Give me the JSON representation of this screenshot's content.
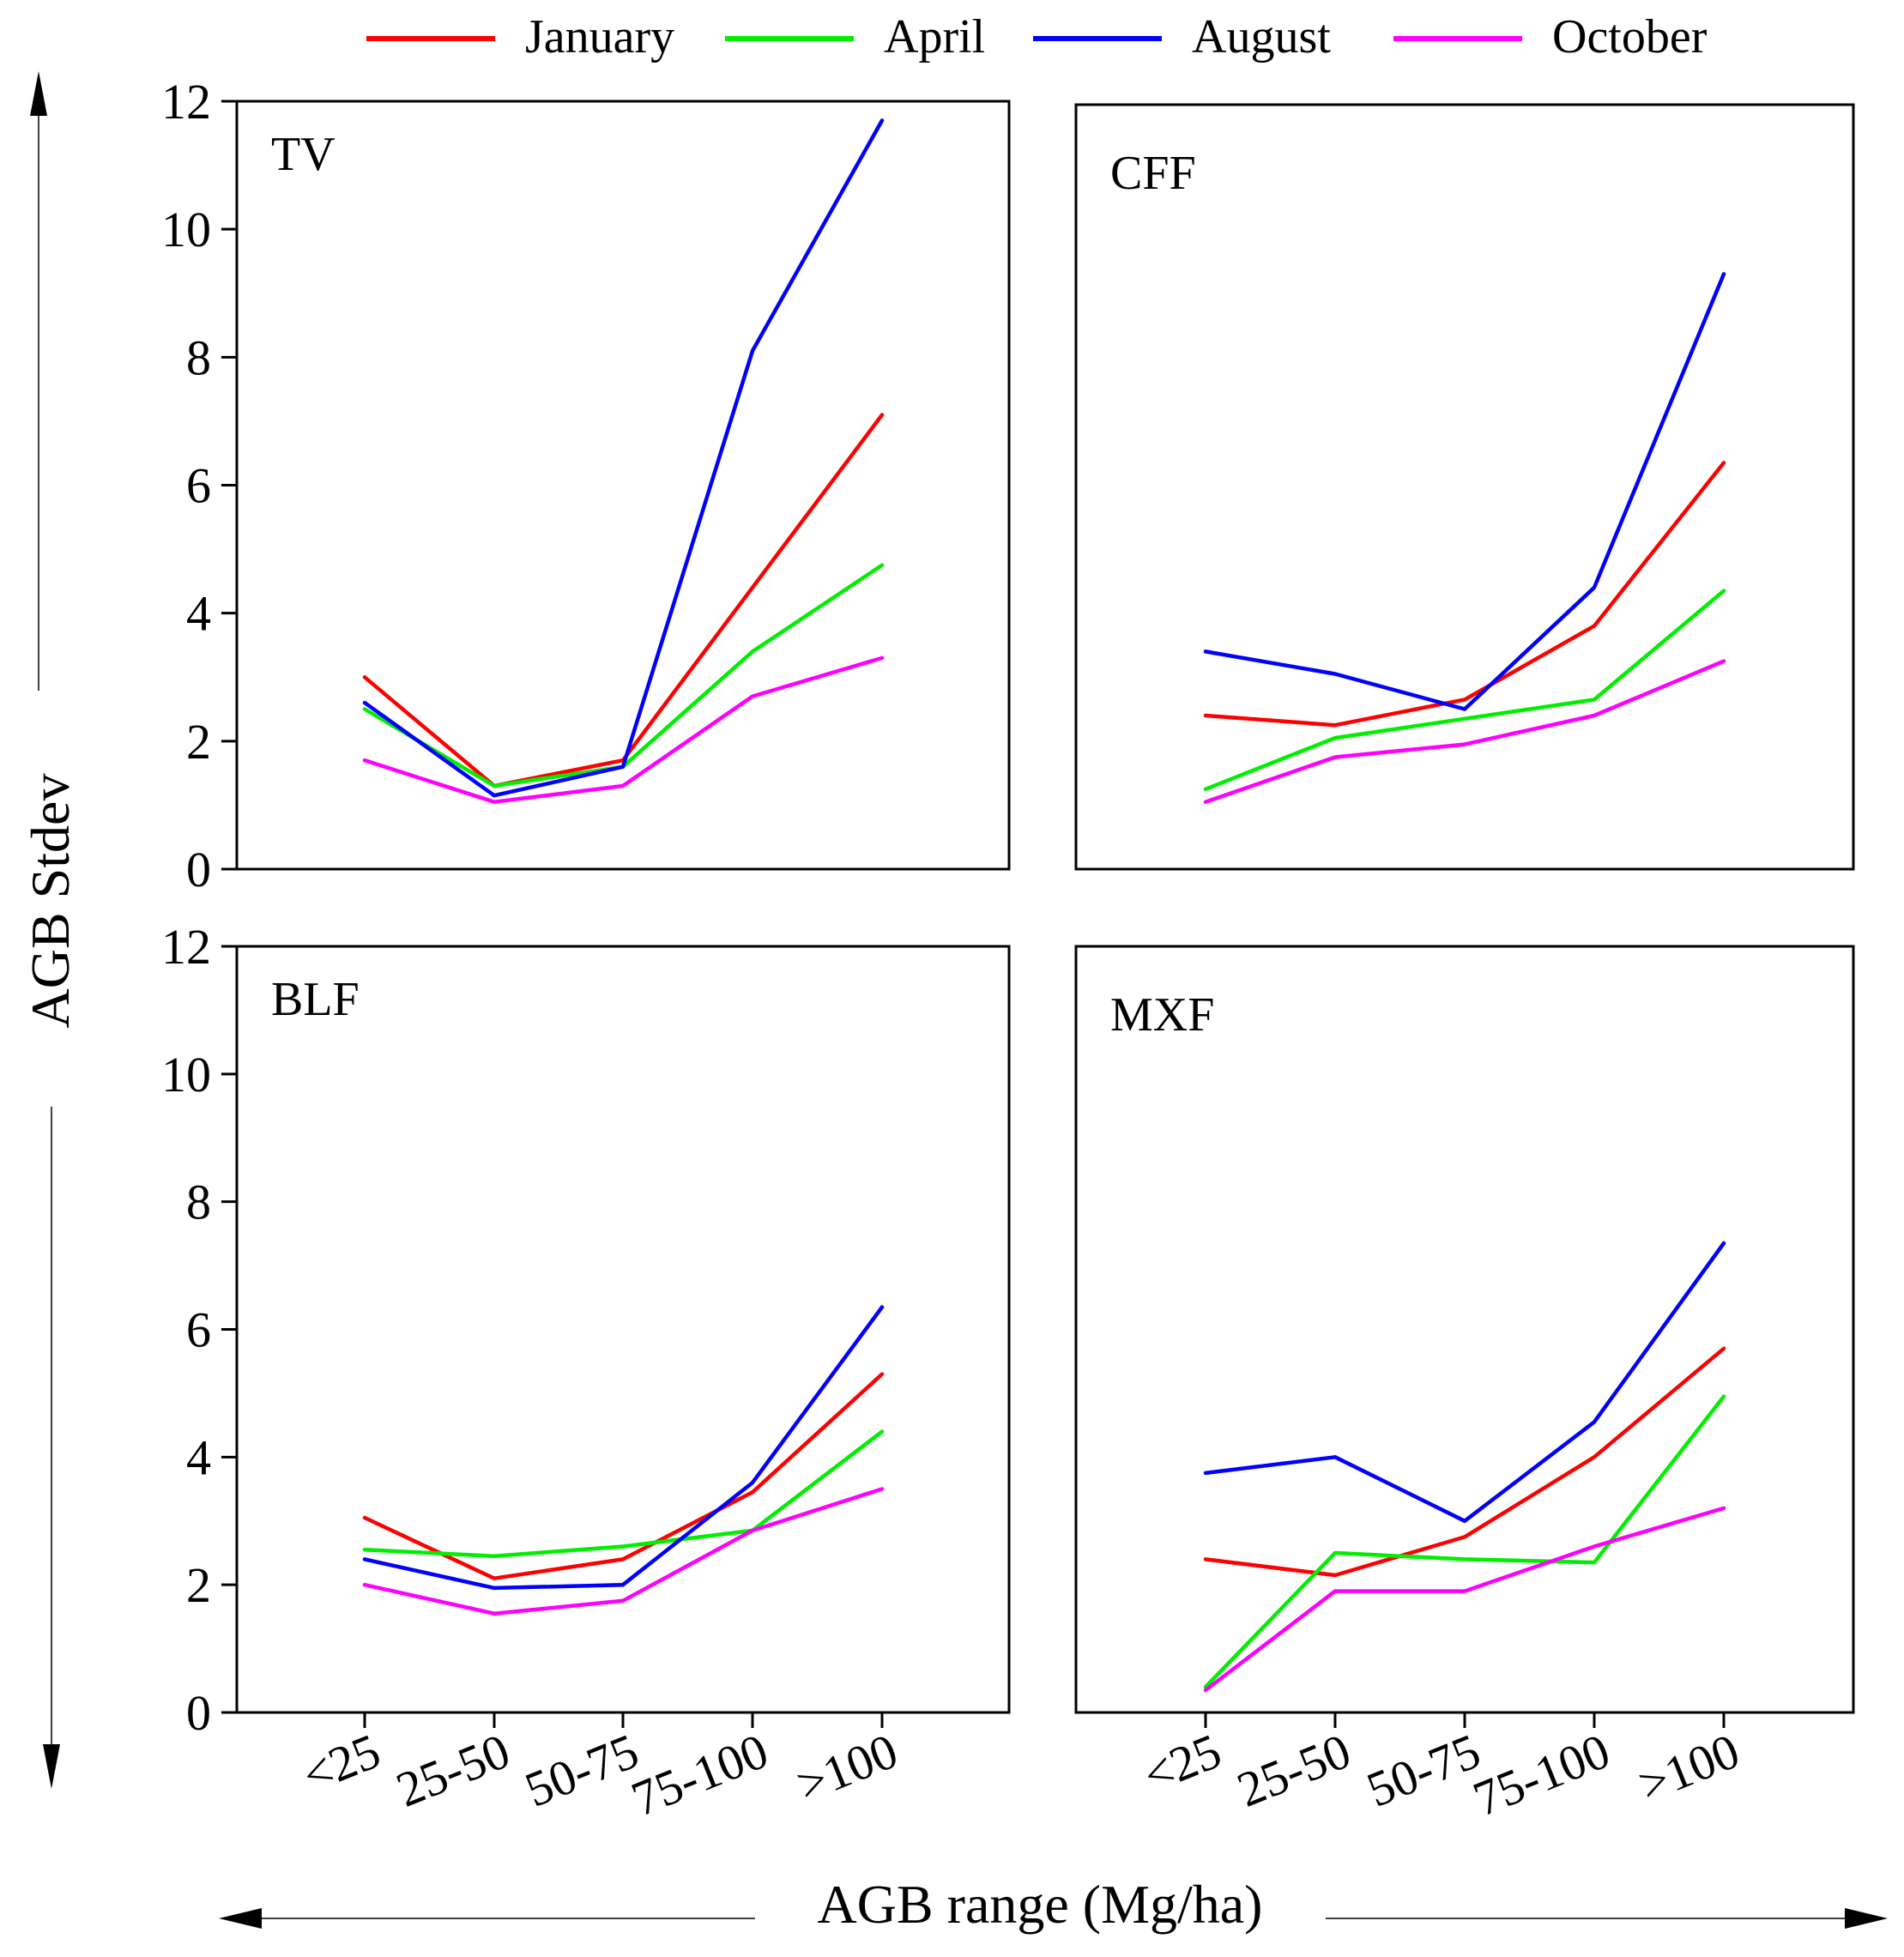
{
  "chart_data": {
    "type": "line",
    "categories": [
      "<25",
      "25-50",
      "50-75",
      "75-100",
      ">100"
    ],
    "xlabel": "AGB range (Mg/ha)",
    "ylabel": "AGB Stdev",
    "ylim": [
      0,
      12
    ],
    "yticks": [
      0,
      2,
      4,
      6,
      8,
      10,
      12
    ],
    "legend": [
      "January",
      "April",
      "August",
      "October"
    ],
    "legend_position": "top",
    "colors": {
      "January": "#ff0000",
      "April": "#00ee00",
      "August": "#0000ff",
      "October": "#ff00ff"
    },
    "panels": [
      {
        "title": "TV",
        "series": [
          {
            "name": "January",
            "values": [
              3.0,
              1.3,
              1.7,
              4.4,
              7.1
            ]
          },
          {
            "name": "April",
            "values": [
              2.5,
              1.3,
              1.6,
              3.4,
              4.75
            ]
          },
          {
            "name": "August",
            "values": [
              2.6,
              1.15,
              1.6,
              8.1,
              11.7
            ]
          },
          {
            "name": "October",
            "values": [
              1.7,
              1.05,
              1.3,
              2.7,
              3.3
            ]
          }
        ]
      },
      {
        "title": "CFF",
        "series": [
          {
            "name": "January",
            "values": [
              2.4,
              2.25,
              2.65,
              3.8,
              6.35
            ]
          },
          {
            "name": "April",
            "values": [
              1.25,
              2.05,
              2.35,
              2.65,
              4.35
            ]
          },
          {
            "name": "August",
            "values": [
              3.4,
              3.05,
              2.5,
              4.4,
              9.3
            ]
          },
          {
            "name": "October",
            "values": [
              1.05,
              1.75,
              1.95,
              2.4,
              3.25
            ]
          }
        ]
      },
      {
        "title": "BLF",
        "series": [
          {
            "name": "January",
            "values": [
              3.05,
              2.1,
              2.4,
              3.45,
              5.3
            ]
          },
          {
            "name": "April",
            "values": [
              2.55,
              2.45,
              2.6,
              2.85,
              4.4
            ]
          },
          {
            "name": "August",
            "values": [
              2.4,
              1.95,
              2.0,
              3.6,
              6.35
            ]
          },
          {
            "name": "October",
            "values": [
              2.0,
              1.55,
              1.75,
              2.85,
              3.5
            ]
          }
        ]
      },
      {
        "title": "MXF",
        "series": [
          {
            "name": "January",
            "values": [
              2.4,
              2.15,
              2.75,
              4.0,
              5.7
            ]
          },
          {
            "name": "April",
            "values": [
              0.4,
              2.5,
              2.4,
              2.35,
              4.95
            ]
          },
          {
            "name": "August",
            "values": [
              3.75,
              4.0,
              3.0,
              4.55,
              7.35
            ]
          },
          {
            "name": "October",
            "values": [
              0.35,
              1.9,
              1.9,
              2.6,
              3.2
            ]
          }
        ]
      }
    ]
  }
}
